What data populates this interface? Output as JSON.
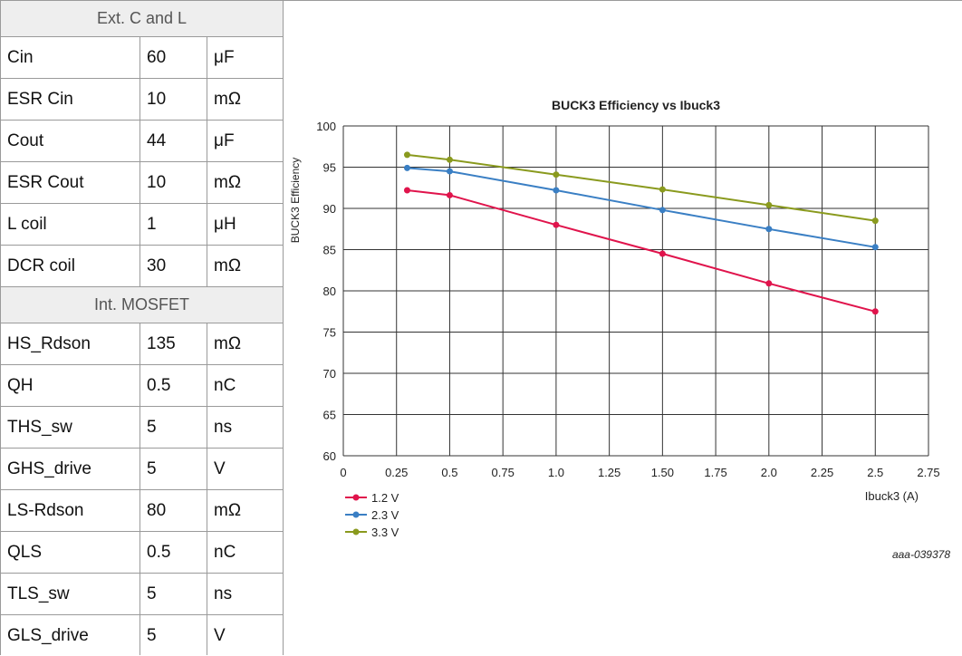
{
  "table": {
    "sections": [
      {
        "header": "Ext. C and L",
        "rows": [
          {
            "name": "Cin",
            "value": "60",
            "unit": "μF"
          },
          {
            "name": "ESR Cin",
            "value": "10",
            "unit": "mΩ"
          },
          {
            "name": "Cout",
            "value": "44",
            "unit": "μF"
          },
          {
            "name": "ESR Cout",
            "value": "10",
            "unit": "mΩ"
          },
          {
            "name": "L coil",
            "value": "1",
            "unit": "μH"
          },
          {
            "name": "DCR coil",
            "value": "30",
            "unit": "mΩ"
          }
        ]
      },
      {
        "header": "Int. MOSFET",
        "rows": [
          {
            "name": "HS_Rdson",
            "value": "135",
            "unit": "mΩ"
          },
          {
            "name": "QH",
            "value": "0.5",
            "unit": "nC"
          },
          {
            "name": "THS_sw",
            "value": "5",
            "unit": "ns"
          },
          {
            "name": "GHS_drive",
            "value": "5",
            "unit": "V"
          },
          {
            "name": "LS-Rdson",
            "value": "80",
            "unit": "mΩ"
          },
          {
            "name": "QLS",
            "value": "0.5",
            "unit": "nC"
          },
          {
            "name": "TLS_sw",
            "value": "5",
            "unit": "ns"
          },
          {
            "name": "GLS_drive",
            "value": "5",
            "unit": "V"
          }
        ]
      }
    ]
  },
  "chart_data": {
    "type": "line",
    "title": "BUCK3 Efficiency vs Ibuck3",
    "xlabel": "Ibuck3 (A)",
    "ylabel": "BUCK3 Efficiency",
    "xlim": [
      0,
      2.75
    ],
    "ylim": [
      60,
      100
    ],
    "x_ticks": [
      "0",
      "0.25",
      "0.5",
      "0.75",
      "1.0",
      "1.25",
      "1.50",
      "1.75",
      "2.0",
      "2.25",
      "2.5",
      "2.75"
    ],
    "y_ticks": [
      "60",
      "65",
      "70",
      "75",
      "80",
      "85",
      "90",
      "95",
      "100"
    ],
    "grid": true,
    "legend_position": "bottom-left",
    "series": [
      {
        "name": "1.2 V",
        "color": "#e0144c",
        "x": [
          0.3,
          0.5,
          1.0,
          1.5,
          2.0,
          2.5
        ],
        "y": [
          92.2,
          91.6,
          88.0,
          84.5,
          80.9,
          77.5
        ]
      },
      {
        "name": "2.3 V",
        "color": "#3a7fc4",
        "x": [
          0.3,
          0.5,
          1.0,
          1.5,
          2.0,
          2.5
        ],
        "y": [
          94.9,
          94.5,
          92.2,
          89.8,
          87.5,
          85.3
        ]
      },
      {
        "name": "3.3 V",
        "color": "#8a9a1e",
        "x": [
          0.3,
          0.5,
          1.0,
          1.5,
          2.0,
          2.5
        ],
        "y": [
          96.5,
          95.9,
          94.1,
          92.3,
          90.4,
          88.5
        ]
      }
    ],
    "footnote": "aaa-039378"
  }
}
